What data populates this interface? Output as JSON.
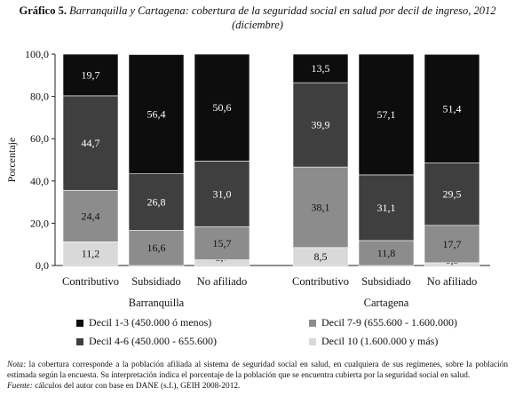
{
  "title": {
    "label": "Gráfico 5.",
    "text": "Barranquilla y Cartagena: cobertura de la seguridad social en salud por decil de ingreso, 2012 (diciembre)"
  },
  "notes": {
    "nota_label": "Nota:",
    "nota_text": "la cobertura corresponde a la población afiliada al sistema de seguridad social en salud, en cualquiera de sus regímenes, sobre la población estimada según la encuesta. Su interpretación indica el porcentaje de la población que se encuentra cubierta por la seguridad social en salud.",
    "fuente_label": "Fuente:",
    "fuente_text": "cálculos del autor con base en DANE (s.f.), GEIH 2008-2012."
  },
  "colors": {
    "decil_1_3": "#0d0d0d",
    "decil_4_6": "#3f3f3f",
    "decil_7_9": "#8c8c8c",
    "decil_10": "#d9d9d9"
  },
  "chart_data": {
    "type": "bar",
    "stacked": true,
    "ylabel": "Porcentaje",
    "ylim": [
      0,
      100
    ],
    "yticks": [
      "0,0",
      "20,0",
      "40,0",
      "60,0",
      "80,0",
      "100,0"
    ],
    "groups": [
      {
        "name": "Barranquilla",
        "categories": [
          "Contributivo",
          "Subsidiado",
          "No afiliado"
        ]
      },
      {
        "name": "Cartagena",
        "categories": [
          "Contributivo",
          "Subsidiado",
          "No afiliado"
        ]
      }
    ],
    "series": [
      {
        "name": "Decil 10 (1.600.000 y más)",
        "color": "#d9d9d9",
        "label_color": "#111111",
        "values": [
          11.2,
          0,
          2.7,
          8.5,
          0,
          1.3
        ],
        "labels": [
          "11,2",
          "",
          "2,7",
          "8,5",
          "",
          "1,3"
        ]
      },
      {
        "name": "Decil 7-9 (655.600 - 1.600.000)",
        "color": "#8c8c8c",
        "label_color": "#111111",
        "values": [
          24.4,
          16.6,
          15.7,
          38.1,
          11.8,
          17.7
        ],
        "labels": [
          "24,4",
          "16,6",
          "15,7",
          "38,1",
          "11,8",
          "17,7"
        ]
      },
      {
        "name": "Decil 4-6 (450.000 - 655.600)",
        "color": "#3f3f3f",
        "label_color": "#ffffff",
        "values": [
          44.7,
          26.8,
          31.0,
          39.9,
          31.1,
          29.5
        ],
        "labels": [
          "44,7",
          "26,8",
          "31,0",
          "39,9",
          "31,1",
          "29,5"
        ]
      },
      {
        "name": "Decil 1-3 (450.000 ó menos)",
        "color": "#0d0d0d",
        "label_color": "#ffffff",
        "values": [
          19.7,
          56.4,
          50.6,
          13.5,
          57.1,
          51.4
        ],
        "labels": [
          "19,7",
          "56,4",
          "50,6",
          "13,5",
          "57,1",
          "51,4"
        ]
      }
    ],
    "legend": [
      {
        "name": "Decil 1-3 (450.000 ó menos)",
        "color": "#0d0d0d"
      },
      {
        "name": "Decil 7-9 (655.600 - 1.600.000)",
        "color": "#8c8c8c"
      },
      {
        "name": "Decil 4-6 (450.000 - 655.600)",
        "color": "#3f3f3f"
      },
      {
        "name": "Decil 10 (1.600.000 y más)",
        "color": "#d9d9d9"
      }
    ],
    "legend_placement": "bottom",
    "grid": false
  }
}
